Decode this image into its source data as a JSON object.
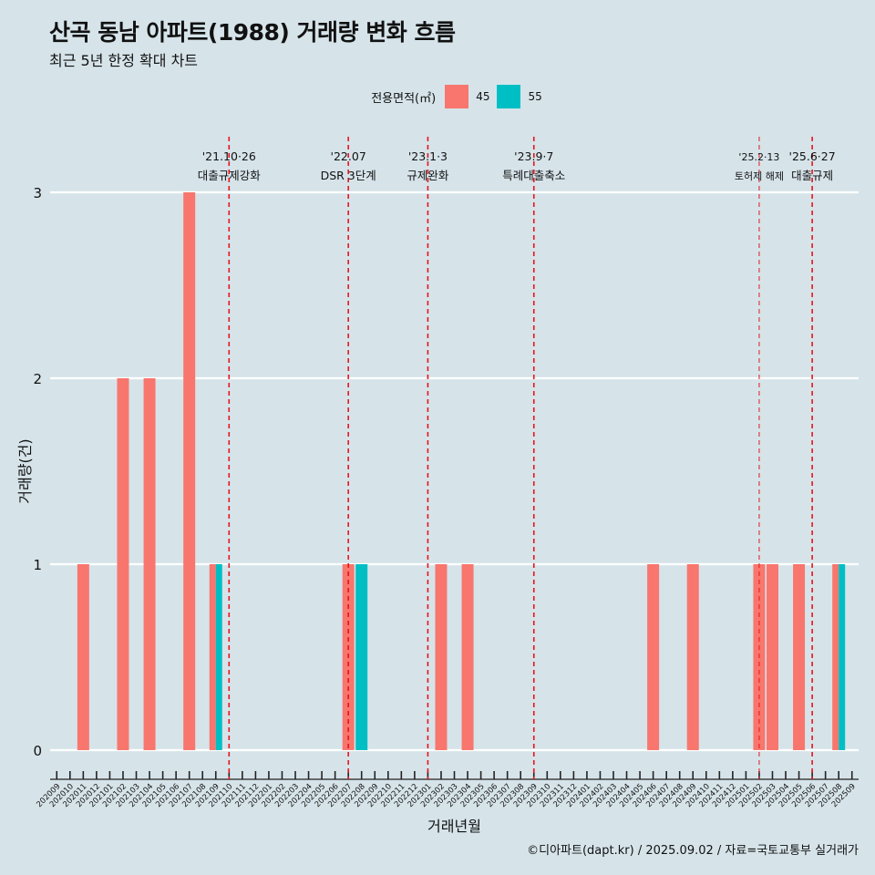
{
  "title": "산곡 동남 아파트(1988) 거래량 변화 흐름",
  "subtitle": "최근 5년 한정 확대 차트",
  "caption": "©디아파트(dapt.kr) / 2025.09.02 / 자료=국토교통부 실거래가",
  "legend": {
    "title": "전용면적(㎡)",
    "items": [
      {
        "label": "45",
        "color": "#f8766d"
      },
      {
        "label": "55",
        "color": "#00bfc4"
      }
    ]
  },
  "chart_data": {
    "type": "bar",
    "xlabel": "거래년월",
    "ylabel": "거래량(건)",
    "ylim": [
      0,
      3
    ],
    "yticks": [
      "0",
      "1",
      "2",
      "3"
    ],
    "grid": true,
    "legend_position": "top",
    "categories": [
      "202009",
      "202010",
      "202011",
      "202012",
      "202101",
      "202102",
      "202103",
      "202104",
      "202105",
      "202106",
      "202107",
      "202108",
      "202109",
      "202110",
      "202111",
      "202112",
      "202201",
      "202202",
      "202203",
      "202204",
      "202205",
      "202206",
      "202207",
      "202208",
      "202209",
      "202210",
      "202211",
      "202212",
      "202301",
      "202302",
      "202303",
      "202304",
      "202305",
      "202306",
      "202307",
      "202308",
      "202309",
      "202310",
      "202311",
      "202312",
      "202401",
      "202402",
      "202403",
      "202404",
      "202405",
      "202406",
      "202407",
      "202408",
      "202409",
      "202410",
      "202411",
      "202412",
      "202501",
      "202502",
      "202503",
      "202504",
      "202505",
      "202506",
      "202507",
      "202508",
      "202509"
    ],
    "series": [
      {
        "name": "45",
        "color": "#f8766d",
        "values": [
          0,
          0,
          1,
          0,
          0,
          2,
          0,
          2,
          0,
          0,
          3,
          0,
          1,
          0,
          0,
          0,
          0,
          0,
          0,
          0,
          0,
          0,
          1,
          0,
          0,
          0,
          0,
          0,
          0,
          1,
          0,
          1,
          0,
          0,
          0,
          0,
          0,
          0,
          0,
          0,
          0,
          0,
          0,
          0,
          0,
          1,
          0,
          0,
          1,
          0,
          0,
          0,
          0,
          1,
          1,
          0,
          1,
          0,
          0,
          1,
          0
        ]
      },
      {
        "name": "55",
        "color": "#00bfc4",
        "values": [
          0,
          0,
          0,
          0,
          0,
          0,
          0,
          0,
          0,
          0,
          0,
          0,
          1,
          0,
          0,
          0,
          0,
          0,
          0,
          0,
          0,
          0,
          0,
          1,
          0,
          0,
          0,
          0,
          0,
          0,
          0,
          0,
          0,
          0,
          0,
          0,
          0,
          0,
          0,
          0,
          0,
          0,
          0,
          0,
          0,
          0,
          0,
          0,
          0,
          0,
          0,
          0,
          0,
          0,
          0,
          0,
          0,
          0,
          0,
          1,
          0
        ]
      }
    ],
    "annotations": [
      {
        "date_label": "'21.10·26",
        "text": "대출규제강화",
        "x": "202110"
      },
      {
        "date_label": "'22.07",
        "text": "DSR 3단계",
        "x": "202207"
      },
      {
        "date_label": "'23.1·3",
        "text": "규제완화",
        "x": "202301"
      },
      {
        "date_label": "'23.9·7",
        "text": "특례대출축소",
        "x": "202309"
      },
      {
        "date_label": "'25.2·13",
        "text": "토허제 해제",
        "x": "202502"
      },
      {
        "date_label": "'25.6·27",
        "text": "대출규제",
        "x": "202506"
      }
    ]
  }
}
